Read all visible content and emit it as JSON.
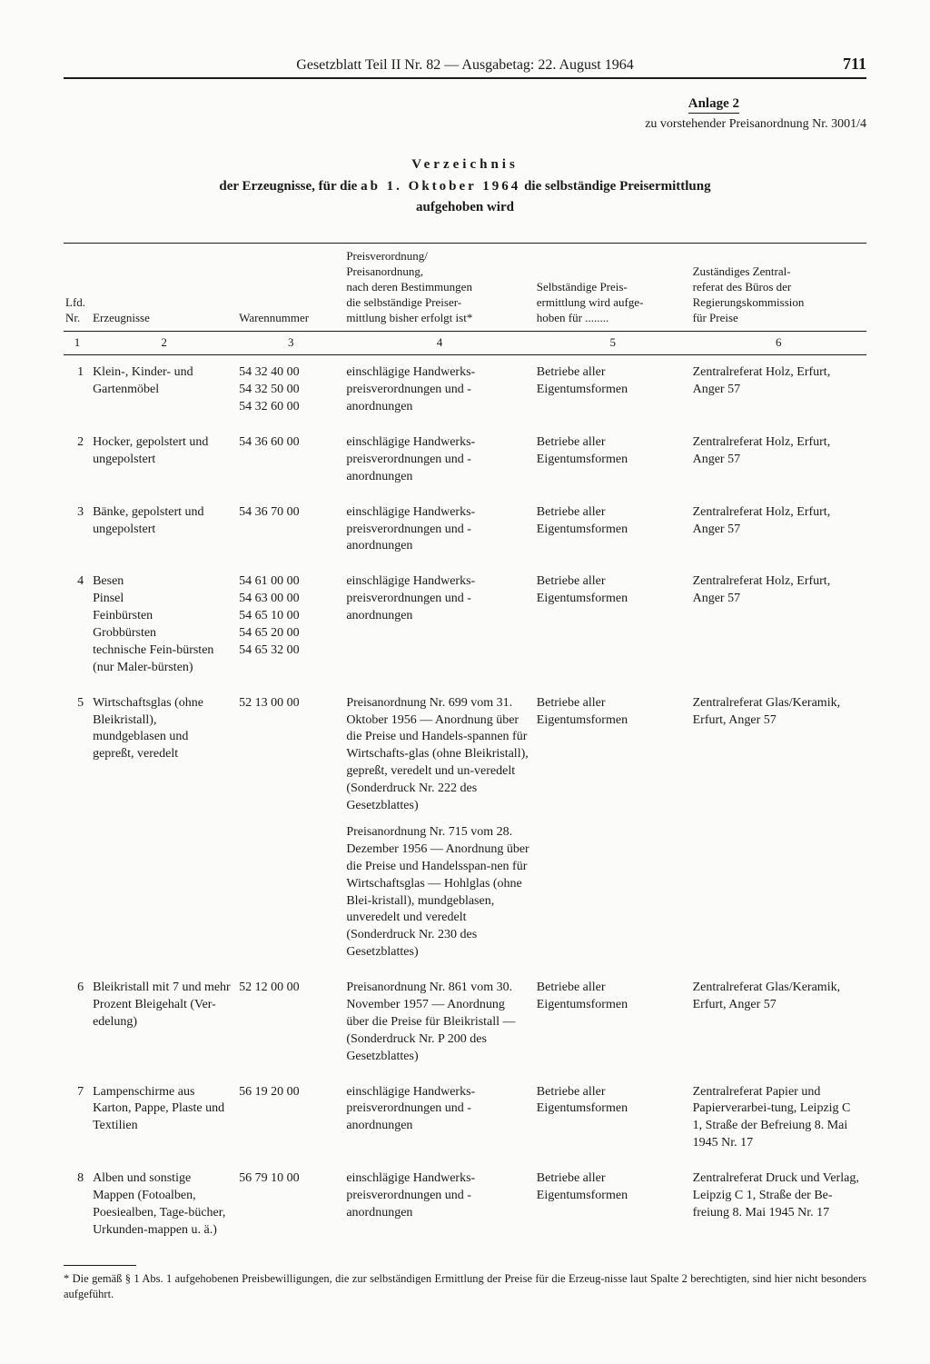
{
  "header": {
    "title": "Gesetzblatt Teil II Nr. 82 — Ausgabetag: 22. August 1964",
    "page_number": "711"
  },
  "anlage": {
    "title": "Anlage 2",
    "subtitle": "zu vorstehender Preisanordnung Nr. 3001/4"
  },
  "main_title": {
    "line1": "Verzeichnis",
    "line2a": "der Erzeugnisse, für die ",
    "line2b_spaced": "ab 1. Oktober 1964",
    "line2c": " die selbständige Preisermittlung",
    "line3": "aufgehoben wird"
  },
  "columns": {
    "headers": {
      "c1": "Lfd.\nNr.",
      "c2": "Erzeugnisse",
      "c3": "Warennummer",
      "c4": "Preisverordnung/\nPreisanordnung,\nnach deren Bestimmungen\ndie selbständige Preiser-\nmittlung bisher erfolgt ist*",
      "c5": "Selbständige Preis-\nermittlung wird aufge-\nhoben für ........",
      "c6": "Zuständiges Zentral-\nreferat des Büros der\nRegierungskommission\nfür Preise"
    },
    "nums": {
      "c1": "1",
      "c2": "2",
      "c3": "3",
      "c4": "4",
      "c5": "5",
      "c6": "6"
    }
  },
  "rows": [
    {
      "nr": "1",
      "erz": "Klein-, Kinder- und Gartenmöbel",
      "waren": "54 32 40 00\n54 32 50 00\n54 32 60 00",
      "pv": "einschlägige Handwerks-preisverordnungen und -anordnungen",
      "selb": "Betriebe aller Eigentumsformen",
      "zust": "Zentralreferat Holz, Erfurt, Anger 57"
    },
    {
      "nr": "2",
      "erz": "Hocker, gepolstert und ungepolstert",
      "waren": "54 36 60 00",
      "pv": "einschlägige Handwerks-preisverordnungen und -anordnungen",
      "selb": "Betriebe aller Eigentumsformen",
      "zust": "Zentralreferat Holz, Erfurt, Anger 57"
    },
    {
      "nr": "3",
      "erz": "Bänke, gepolstert und ungepolstert",
      "waren": "54 36 70 00",
      "pv": "einschlägige Handwerks-preisverordnungen und -anordnungen",
      "selb": "Betriebe aller Eigentumsformen",
      "zust": "Zentralreferat Holz, Erfurt, Anger 57"
    },
    {
      "nr": "4",
      "erz": "Besen\nPinsel\nFeinbürsten\nGrobbürsten\ntechnische Fein-bürsten (nur Maler-bürsten)",
      "waren": "54 61 00 00\n54 63 00 00\n54 65 10 00\n54 65 20 00\n54 65 32 00",
      "pv": "einschlägige Handwerks-preisverordnungen und -anordnungen",
      "selb": "Betriebe aller Eigentumsformen",
      "zust": "Zentralreferat Holz, Erfurt, Anger 57"
    },
    {
      "nr": "5",
      "erz": "Wirtschaftsglas (ohne Bleikristall), mundgeblasen und gepreßt, veredelt",
      "waren": "52 13 00 00",
      "pv": "Preisanordnung Nr. 699 vom 31. Oktober 1956 — Anordnung über die Preise und Handels-spannen für Wirtschafts-glas (ohne Bleikristall), gepreßt, veredelt und un-veredelt (Sonderdruck Nr. 222 des Gesetzblattes)",
      "pv2": "Preisanordnung Nr. 715 vom 28. Dezember 1956 — Anordnung über die Preise und Handelsspan-nen für Wirtschaftsglas — Hohlglas (ohne Blei-kristall), mundgeblasen, unveredelt und veredelt (Sonderdruck Nr. 230 des Gesetzblattes)",
      "selb": "Betriebe aller Eigentumsformen",
      "zust": "Zentralreferat Glas/Keramik, Erfurt, Anger 57"
    },
    {
      "nr": "6",
      "erz": "Bleikristall mit 7 und mehr Prozent Bleigehalt (Ver-edelung)",
      "waren": "52 12 00 00",
      "pv": "Preisanordnung Nr. 861 vom 30. November 1957 — Anordnung über die Preise für Bleikristall — (Sonderdruck Nr. P 200 des Gesetzblattes)",
      "selb": "Betriebe aller Eigentumsformen",
      "zust": "Zentralreferat Glas/Keramik, Erfurt, Anger 57"
    },
    {
      "nr": "7",
      "erz": "Lampenschirme aus Karton, Pappe, Plaste und Textilien",
      "waren": "56 19 20 00",
      "pv": "einschlägige Handwerks-preisverordnungen und -anordnungen",
      "selb": "Betriebe aller Eigentumsformen",
      "zust": "Zentralreferat Papier und Papierverarbei-tung, Leipzig C 1, Straße der Befreiung 8. Mai 1945 Nr. 17"
    },
    {
      "nr": "8",
      "erz": "Alben und sonstige Mappen (Fotoalben, Poesiealben, Tage-bücher, Urkunden-mappen u. ä.)",
      "waren": "56 79 10 00",
      "pv": "einschlägige Handwerks-preisverordnungen und -anordnungen",
      "selb": "Betriebe aller Eigentumsformen",
      "zust": "Zentralreferat Druck und Verlag, Leipzig C 1, Straße der Be-freiung 8. Mai 1945 Nr. 17"
    }
  ],
  "footnote": "* Die gemäß § 1 Abs. 1 aufgehobenen Preisbewilligungen, die zur selbständigen Ermittlung der Preise für die Erzeug-nisse laut Spalte 2 berechtigten, sind hier nicht besonders aufgeführt."
}
